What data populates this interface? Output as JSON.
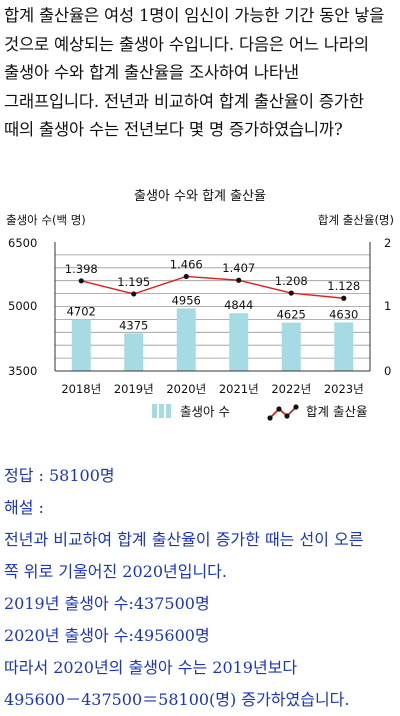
{
  "question": "합계 출산율은 여성 1명이 임신이 가능한 기간 동안 낳을 것으로 예상되는 출생아 수입니다. 다음은 어느 나라의 출생아 수와 합계 출산율을 조사하여 나타낸 그래프입니다. 전년과 비교하여 합계 출산율이 증가한 때의 출생아 수는 전년보다 몇 명 증가하였습니까?",
  "chart_data": {
    "type": "bar+line",
    "title": "출생아 수와 합계 출산율",
    "categories": [
      "2018년",
      "2019년",
      "2020년",
      "2021년",
      "2022년",
      "2023년"
    ],
    "left_axis": {
      "label": "출생아 수(백 명)",
      "range": [
        3500,
        6500
      ],
      "ticks": [
        "3500",
        "5000",
        "6500"
      ]
    },
    "right_axis": {
      "label": "합계 출산율(명)",
      "range": [
        0,
        2
      ],
      "ticks": [
        "0",
        "1",
        "2"
      ]
    },
    "series": [
      {
        "name": "출생아 수",
        "type": "bar",
        "axis": "left",
        "values": [
          4702,
          4375,
          4956,
          4844,
          4625,
          4630
        ],
        "labels": [
          "4702",
          "4375",
          "4956",
          "4844",
          "4625",
          "4630"
        ]
      },
      {
        "name": "합계 출산율",
        "type": "line",
        "axis": "right",
        "values": [
          1.398,
          1.195,
          1.466,
          1.407,
          1.208,
          1.128
        ],
        "labels": [
          "1.398",
          "1.195",
          "1.466",
          "1.407",
          "1.208",
          "1.128"
        ]
      }
    ],
    "grid": true,
    "legend_position": "bottom",
    "colors": {
      "bar": "#a6dbe4",
      "line": "#e0201b",
      "marker": "#111111",
      "grid": "#999999"
    }
  },
  "answer": {
    "lines": [
      "정답 : 58100명",
      "해설 :",
      "전년과 비교하여 합계 출산율이 증가한 때는 선이 오른",
      "쪽 위로 기울어진 2020년입니다.",
      "2019년 출생아 수:437500명",
      "2020년 출생아 수:495600명",
      "따라서 2020년의 출생아 수는 2019년보다",
      "495600－437500＝58100(명) 증가하였습니다."
    ]
  }
}
